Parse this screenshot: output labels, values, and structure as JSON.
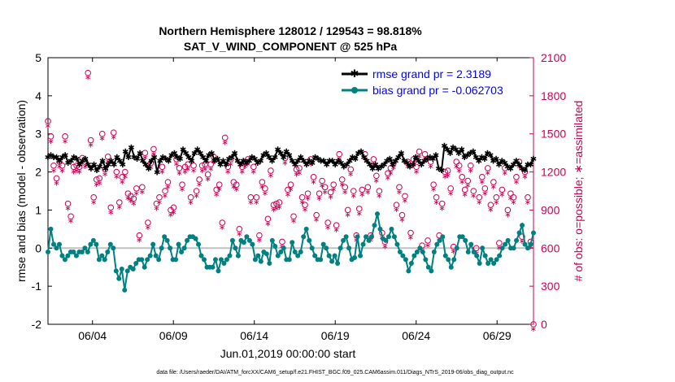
{
  "chart_data": {
    "type": "line",
    "title_line1": "Northern Hemisphere 128012 / 129543 = 98.818%",
    "title_line2": "SAT_V_WIND_COMPONENT @ 525 hPa",
    "xlabel": "Jun.01,2019 00:00:00 start",
    "ylabel_left": "rmse and bias (model - observation)",
    "ylabel_right": "# of obs: o=possible; ∗=assimilated",
    "footnote": "data file: /Users/raeder/DAI/ATM_forcXX/CAM6_setup/f.e21.FHIST_BGC.f09_025.CAM6assim.011/Diags_NTrS_2019-06/obs_diag_output.nc",
    "x_range_days": [
      0.25,
      30.25
    ],
    "ylim_left": [
      -2,
      5
    ],
    "ylim_right": [
      0,
      2100
    ],
    "x_ticks": [
      {
        "day": 3,
        "label": "06/04"
      },
      {
        "day": 8,
        "label": "06/09"
      },
      {
        "day": 13,
        "label": "06/14"
      },
      {
        "day": 18,
        "label": "06/19"
      },
      {
        "day": 23,
        "label": "06/24"
      },
      {
        "day": 28,
        "label": "06/29"
      }
    ],
    "y_ticks_left": [
      "-2",
      "-1",
      "0",
      "1",
      "2",
      "3",
      "4",
      "5"
    ],
    "y_ticks_right": [
      "0",
      "300",
      "600",
      "900",
      "1200",
      "1500",
      "1800",
      "2100"
    ],
    "zero_line": 0,
    "colors": {
      "rmse": "#000000",
      "bias": "#008080",
      "obs": "#cc0055",
      "right_axis": "#cc0055",
      "legend_text": "#0000ff",
      "zero_line": "#c0c0c0"
    },
    "series": [
      {
        "name": "rmse grand pr = 2.3189",
        "values": [
          2.4,
          2.45,
          2.4,
          2.4,
          2.3,
          2.4,
          2.45,
          2.25,
          2.3,
          2.4,
          2.35,
          2.2,
          2.3,
          2.35,
          2.2,
          2.1,
          2.2,
          2.05,
          2.15,
          2.3,
          2.1,
          2.2,
          2.3,
          2.2,
          2.4,
          2.3,
          2.2,
          2.55,
          2.4,
          2.65,
          2.4,
          2.35,
          2.5,
          2.3,
          2.2,
          2.1,
          2.3,
          2.4,
          2.0,
          2.3,
          2.4,
          2.35,
          2.3,
          2.45,
          2.5,
          2.4,
          2.35,
          2.6,
          2.5,
          2.4,
          2.3,
          2.5,
          2.6,
          2.5,
          2.4,
          2.3,
          2.45,
          2.5,
          2.3,
          2.35,
          2.2,
          2.3,
          2.2,
          2.35,
          2.4,
          2.5,
          2.3,
          2.2,
          2.3,
          2.25,
          2.3,
          2.4,
          2.35,
          2.25,
          2.3,
          2.45,
          2.5,
          2.4,
          2.3,
          2.4,
          2.6,
          2.5,
          2.4,
          2.55,
          2.45,
          2.3,
          2.2,
          2.3,
          2.4,
          2.3,
          2.2,
          2.3,
          2.25,
          2.4,
          2.35,
          2.3,
          2.3,
          2.2,
          2.3,
          2.3,
          2.2,
          2.3,
          2.25,
          2.15,
          2.2,
          2.3,
          2.4,
          2.35,
          2.5,
          2.55,
          2.4,
          2.3,
          2.2,
          2.1,
          2.2,
          2.1,
          2.15,
          2.2,
          2.3,
          2.35,
          2.2,
          2.3,
          2.4,
          2.5,
          2.3,
          2.25,
          2.15,
          2.2,
          2.4,
          2.3,
          2.2,
          2.3,
          2.35,
          2.4,
          2.35,
          2.45,
          2.1,
          2.05,
          2.7,
          2.6,
          2.5,
          2.65,
          2.6,
          2.5,
          2.6,
          2.4,
          2.45,
          2.5,
          2.55,
          2.4,
          2.3,
          2.4,
          2.35,
          2.5,
          2.45,
          2.3,
          2.35,
          2.2,
          2.3,
          2.25,
          2.15,
          2.1,
          2.2,
          2.3,
          2.2,
          2.1,
          2.05,
          2.2,
          2.2,
          2.35
        ],
        "style": "line-star"
      },
      {
        "name": "bias grand pr = -0.062703",
        "values": [
          -0.1,
          0.5,
          0.1,
          0.0,
          0.1,
          -0.2,
          -0.3,
          -0.2,
          -0.1,
          -0.1,
          -0.2,
          -0.1,
          -0.1,
          0.0,
          -0.1,
          0.1,
          0.2,
          0.1,
          -0.3,
          -0.2,
          -0.3,
          -0.1,
          0.1,
          0.0,
          -0.6,
          -0.8,
          -0.55,
          -1.1,
          -0.6,
          -0.5,
          -0.55,
          -0.4,
          -0.3,
          -0.3,
          -0.5,
          -0.3,
          -0.2,
          0.1,
          -0.2,
          -0.3,
          0.0,
          0.3,
          0.2,
          0.0,
          -0.3,
          -0.3,
          0.1,
          -0.1,
          0.0,
          0.2,
          0.3,
          0.3,
          0.25,
          0.1,
          -0.2,
          -0.3,
          -0.5,
          -0.5,
          -0.5,
          -0.3,
          -0.6,
          -0.3,
          -0.4,
          -0.3,
          -0.2,
          0.2,
          0.0,
          -0.2,
          0.2,
          0.15,
          0.3,
          0.2,
          0.1,
          -0.3,
          -0.2,
          -0.35,
          -0.1,
          -0.15,
          -0.4,
          0.2,
          0.05,
          -0.2,
          -0.1,
          0.0,
          -0.3,
          -0.3,
          0.15,
          -0.1,
          -0.2,
          -0.1,
          0.3,
          0.5,
          0.2,
          0.0,
          -0.2,
          -0.3,
          -0.3,
          0.1,
          0.0,
          -0.2,
          -0.35,
          -0.2,
          -0.4,
          0.0,
          0.2,
          0.3,
          0.0,
          -0.3,
          -0.25,
          0.3,
          -0.2,
          0.1,
          0.3,
          0.2,
          0.3,
          0.6,
          0.9,
          0.5,
          0.25,
          0.2,
          0.3,
          0.5,
          0.3,
          0.1,
          -0.1,
          -0.2,
          -0.3,
          -0.6,
          -0.4,
          -0.2,
          -0.1,
          0.0,
          -0.1,
          -0.3,
          -0.5,
          -0.6,
          -0.1,
          0.1,
          0.2,
          0.3,
          -0.2,
          -0.3,
          -0.5,
          -0.3,
          0.0,
          0.3,
          0.3,
          0.2,
          -0.1,
          0.1,
          -0.1,
          -0.2,
          -0.4,
          0.0,
          -0.2,
          -0.4,
          -0.3,
          -0.4,
          -0.3,
          -0.2,
          0.0,
          0.1,
          0.2,
          0.0,
          0.0,
          0.2,
          0.4,
          0.6,
          0.1,
          0.0,
          0.1,
          0.4
        ],
        "style": "line-circle"
      },
      {
        "name": "obs possible",
        "values": [
          1600,
          1480,
          1250,
          1150,
          1280,
          1250,
          1480,
          950,
          850,
          1240,
          1250,
          1240,
          1310,
          1280,
          1980,
          1450,
          1000,
          1140,
          1150,
          1500,
          1220,
          1320,
          920,
          1510,
          1200,
          960,
          1160,
          1200,
          1030,
          1010,
          990,
          1070,
          700,
          1080,
          1350,
          800,
          1270,
          1380,
          950,
          1000,
          1240,
          1050,
          1120,
          900,
          920,
          1300,
          1230,
          1100,
          1240,
          1260,
          1000,
          1250,
          1050,
          1140,
          1250,
          1260,
          1180,
          1260,
          1320,
          1060,
          1100,
          800,
          1470,
          1240,
          1300,
          1120,
          1100,
          750,
          1240,
          1280,
          1300,
          1000,
          1240,
          1000,
          700,
          1120,
          1070,
          830,
          1210,
          940,
          950,
          960,
          650,
          1310,
          1060,
          1100,
          850,
          1220,
          1230,
          1000,
          940,
          1030,
          1300,
          1160,
          860,
          1030,
          1130,
          1080,
          800,
          1040,
          1100,
          780,
          1340,
          1140,
          1080,
          900,
          1220,
          1050,
          700,
          910,
          1060,
          1340,
          1080,
          700,
          1300,
          1170,
          1050,
          720,
          650,
          1190,
          1230,
          1270,
          940,
          1080,
          860,
          1010,
          1280,
          720,
          1300,
          1240,
          1360,
          620,
          1340,
          660,
          1280,
          1100,
          1000,
          700,
          950,
          1200,
          1210,
          1070,
          610,
          1280,
          1250,
          1160,
          1060,
          1130,
          1250,
          1050,
          600,
          1000,
          1160,
          1070,
          1230,
          940,
          1120,
          1000,
          640,
          1060,
          1230,
          900,
          1030,
          1000,
          1160,
          1280,
          690,
          1200,
          1000,
          650,
          0
        ],
        "style": "circle"
      }
    ]
  }
}
